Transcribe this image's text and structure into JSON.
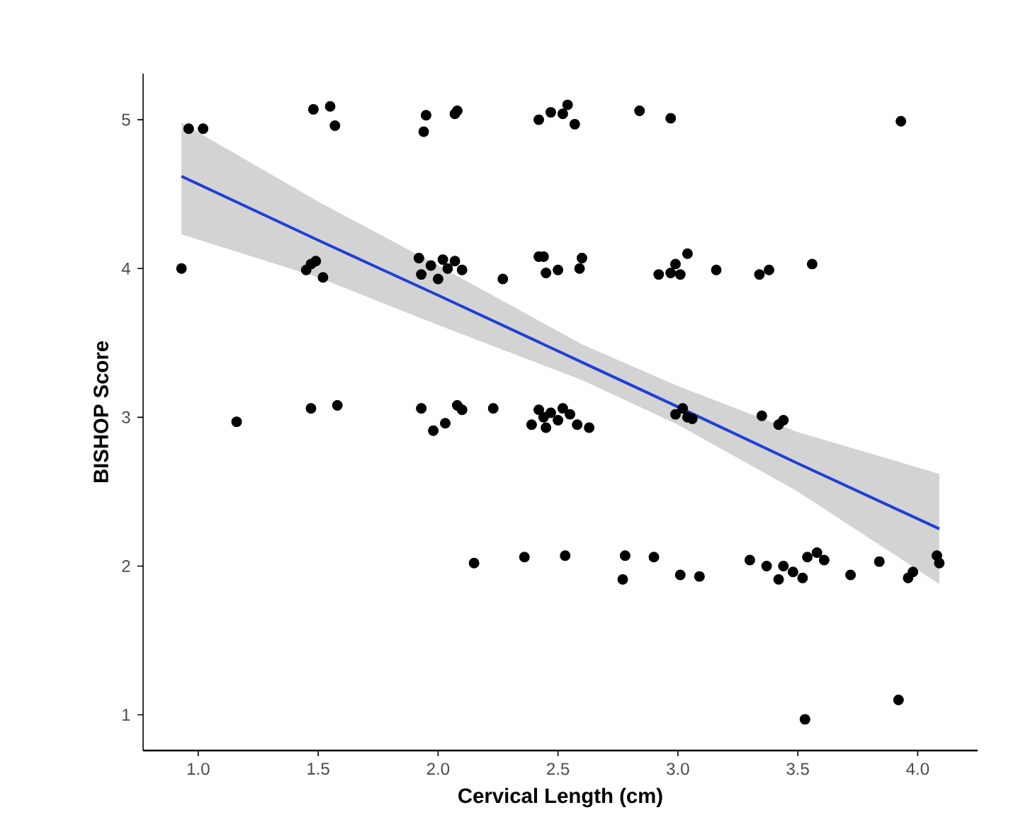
{
  "chart_data": {
    "type": "scatter",
    "xlabel": "Cervical Length (cm)",
    "ylabel": "BISHOP Score",
    "xlim": [
      0.77,
      4.25
    ],
    "ylim": [
      0.76,
      5.31
    ],
    "xticks": [
      {
        "value": 1,
        "label": "1.0"
      },
      {
        "value": 1.5,
        "label": "1.5"
      },
      {
        "value": 2,
        "label": "2.0"
      },
      {
        "value": 2.5,
        "label": "2.5"
      },
      {
        "value": 3,
        "label": "3.0"
      },
      {
        "value": 3.5,
        "label": "3.5"
      },
      {
        "value": 4,
        "label": "4.0"
      }
    ],
    "yticks": [
      1,
      2,
      3,
      4,
      5
    ],
    "series": [
      {
        "color": "#000000",
        "marker": "circle",
        "x": [
          0.96,
          1.02,
          1.48,
          1.55,
          1.57,
          1.95,
          1.94,
          2.07,
          2.08,
          2.42,
          2.47,
          2.52,
          2.54,
          2.57,
          2.84,
          2.97,
          3.93,
          0.93,
          1.45,
          1.47,
          1.49,
          1.52,
          1.92,
          1.93,
          1.97,
          2.0,
          2.02,
          2.04,
          2.07,
          2.1,
          2.27,
          2.42,
          2.44,
          2.45,
          2.5,
          2.59,
          2.6,
          2.92,
          2.97,
          2.99,
          3.01,
          3.04,
          3.16,
          3.34,
          3.38,
          3.56,
          1.16,
          1.47,
          1.58,
          1.93,
          1.98,
          2.03,
          2.08,
          2.1,
          2.23,
          2.39,
          2.42,
          2.44,
          2.45,
          2.47,
          2.5,
          2.52,
          2.55,
          2.58,
          2.63,
          2.99,
          3.02,
          3.04,
          3.06,
          3.35,
          3.42,
          3.44,
          2.15,
          2.36,
          2.53,
          2.78,
          2.77,
          2.9,
          3.01,
          3.09,
          3.3,
          3.37,
          3.42,
          3.44,
          3.48,
          3.52,
          3.54,
          3.58,
          3.61,
          3.72,
          3.84,
          3.96,
          3.98,
          4.08,
          4.09,
          3.53,
          3.92
        ],
        "values": [
          4.94,
          4.94,
          5.07,
          5.09,
          4.96,
          5.03,
          4.92,
          5.04,
          5.06,
          5.0,
          5.05,
          5.04,
          5.1,
          4.97,
          5.06,
          5.01,
          4.99,
          4.0,
          3.99,
          4.03,
          4.05,
          3.94,
          4.07,
          3.96,
          4.02,
          3.93,
          4.06,
          4.0,
          4.05,
          3.99,
          3.93,
          4.08,
          4.08,
          3.97,
          3.99,
          4.0,
          4.07,
          3.96,
          3.97,
          4.03,
          3.96,
          4.1,
          3.99,
          3.96,
          3.99,
          4.03,
          2.97,
          3.06,
          3.08,
          3.06,
          2.91,
          2.96,
          3.08,
          3.05,
          3.06,
          2.95,
          3.05,
          3.0,
          2.93,
          3.03,
          2.98,
          3.06,
          3.02,
          2.95,
          2.93,
          3.02,
          3.06,
          3.0,
          2.99,
          3.01,
          2.95,
          2.98,
          2.02,
          2.06,
          2.07,
          2.07,
          1.91,
          2.06,
          1.94,
          1.93,
          2.04,
          2.0,
          1.91,
          2.0,
          1.96,
          1.92,
          2.06,
          2.09,
          2.04,
          1.94,
          2.03,
          1.92,
          1.96,
          2.07,
          2.02,
          0.97,
          1.1
        ]
      },
      {
        "type": "line",
        "color": "#1f3fd6",
        "marker": "none",
        "x": [
          0.93,
          1.5,
          2.0,
          2.6,
          3.0,
          3.5,
          4.09
        ],
        "values": [
          4.62,
          4.19,
          3.82,
          3.37,
          3.07,
          2.69,
          2.25
        ],
        "upper": [
          4.98,
          4.45,
          4.02,
          3.49,
          3.21,
          2.9,
          2.62
        ],
        "lower": [
          4.23,
          3.94,
          3.62,
          3.25,
          2.95,
          2.5,
          1.88
        ]
      }
    ]
  }
}
